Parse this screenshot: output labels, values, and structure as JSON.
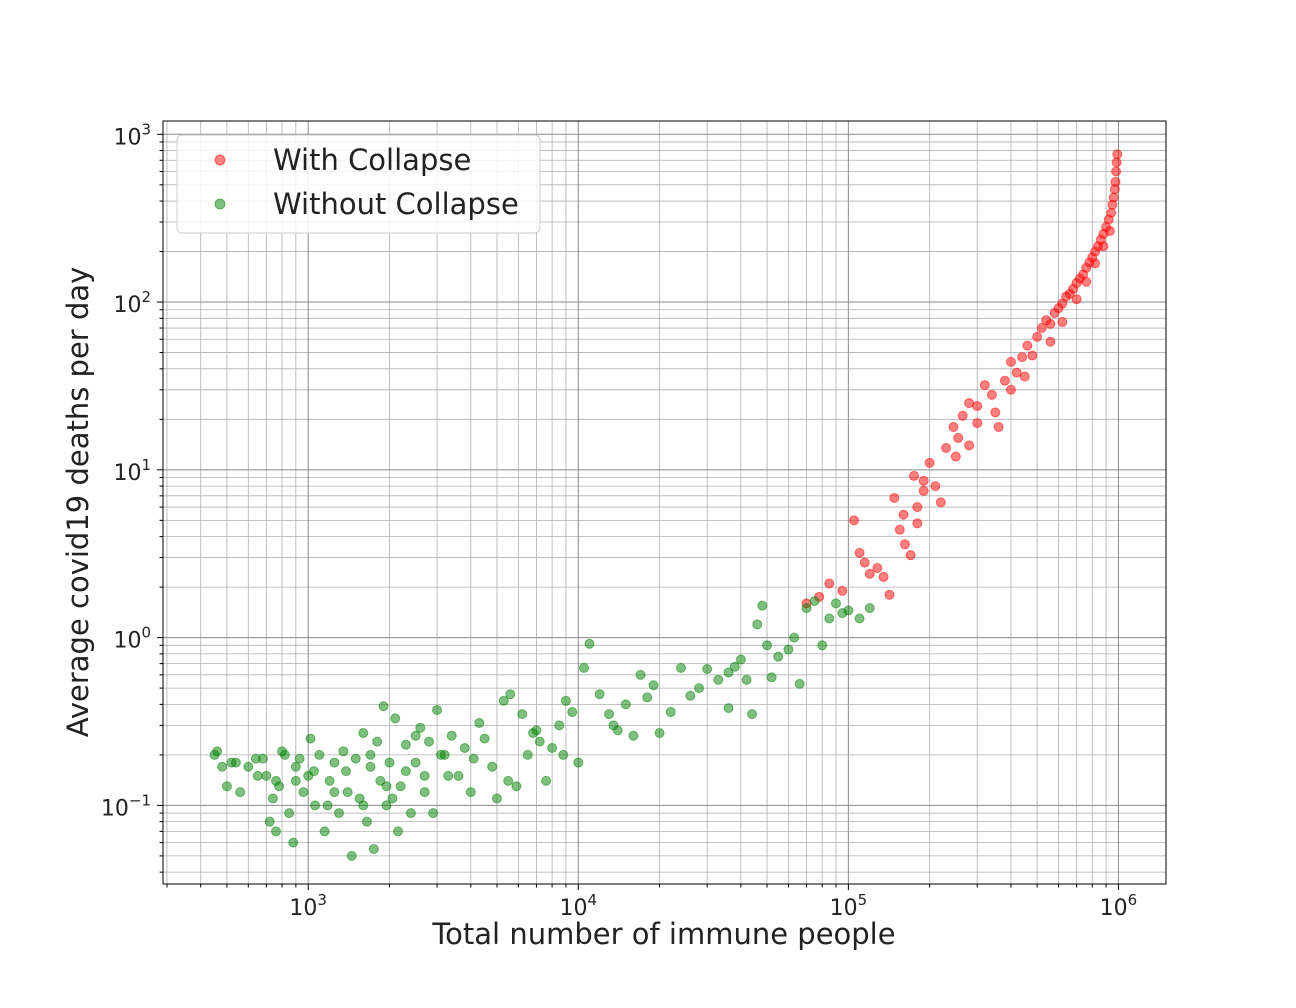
{
  "chart_data": {
    "type": "scatter",
    "title": "",
    "xlabel": "Total number of immune people",
    "ylabel": "Average covid19 deaths per day",
    "xscale": "log",
    "yscale": "log",
    "xlim": [
      290,
      1500000
    ],
    "ylim": [
      0.034,
      1200
    ],
    "grid": "major-and-minor",
    "legend_position": "top-left",
    "x_tick_labels": [
      {
        "base": "10",
        "exp": "3",
        "value": 1000
      },
      {
        "base": "10",
        "exp": "4",
        "value": 10000
      },
      {
        "base": "10",
        "exp": "5",
        "value": 100000
      },
      {
        "base": "10",
        "exp": "6",
        "value": 1000000
      }
    ],
    "y_tick_labels": [
      {
        "base": "10",
        "exp": "−1",
        "value": 0.1
      },
      {
        "base": "10",
        "exp": "0",
        "value": 1
      },
      {
        "base": "10",
        "exp": "1",
        "value": 10
      },
      {
        "base": "10",
        "exp": "2",
        "value": 100
      },
      {
        "base": "10",
        "exp": "3",
        "value": 1000
      }
    ],
    "series": [
      {
        "name": "With Collapse",
        "color": "#ff0000",
        "points": [
          [
            70000,
            1.6
          ],
          [
            78000,
            1.75
          ],
          [
            85000,
            2.1
          ],
          [
            95000,
            1.9
          ],
          [
            105000,
            5.0
          ],
          [
            110000,
            3.2
          ],
          [
            115000,
            2.8
          ],
          [
            120000,
            2.4
          ],
          [
            128000,
            2.6
          ],
          [
            135000,
            2.3
          ],
          [
            142000,
            1.8
          ],
          [
            148000,
            6.8
          ],
          [
            155000,
            4.4
          ],
          [
            162000,
            3.6
          ],
          [
            170000,
            3.1
          ],
          [
            175000,
            9.2
          ],
          [
            180000,
            6.0
          ],
          [
            190000,
            7.5
          ],
          [
            200000,
            11.0
          ],
          [
            210000,
            8.0
          ],
          [
            220000,
            6.4
          ],
          [
            230000,
            13.5
          ],
          [
            245000,
            18.0
          ],
          [
            255000,
            15.5
          ],
          [
            265000,
            21.0
          ],
          [
            280000,
            25.0
          ],
          [
            300000,
            24.0
          ],
          [
            320000,
            32.0
          ],
          [
            340000,
            28.0
          ],
          [
            360000,
            18.0
          ],
          [
            380000,
            34.0
          ],
          [
            400000,
            44.0
          ],
          [
            420000,
            38.0
          ],
          [
            440000,
            47.0
          ],
          [
            460000,
            55.0
          ],
          [
            480000,
            48.0
          ],
          [
            500000,
            62.0
          ],
          [
            520000,
            70.0
          ],
          [
            540000,
            78.0
          ],
          [
            560000,
            74.0
          ],
          [
            580000,
            86.0
          ],
          [
            600000,
            92.0
          ],
          [
            620000,
            98.0
          ],
          [
            640000,
            108.0
          ],
          [
            660000,
            112.0
          ],
          [
            680000,
            120.0
          ],
          [
            700000,
            130.0
          ],
          [
            720000,
            138.0
          ],
          [
            740000,
            146.0
          ],
          [
            760000,
            160.0
          ],
          [
            780000,
            172.0
          ],
          [
            800000,
            185.0
          ],
          [
            820000,
            200.0
          ],
          [
            840000,
            215.0
          ],
          [
            860000,
            235.0
          ],
          [
            880000,
            255.0
          ],
          [
            900000,
            280.0
          ],
          [
            920000,
            310.0
          ],
          [
            940000,
            340.0
          ],
          [
            950000,
            380.0
          ],
          [
            960000,
            420.0
          ],
          [
            970000,
            470.0
          ],
          [
            975000,
            520.0
          ],
          [
            980000,
            600.0
          ],
          [
            985000,
            680.0
          ],
          [
            990000,
            760.0
          ],
          [
            560000,
            58.0
          ],
          [
            620000,
            76.0
          ],
          [
            700000,
            104.0
          ],
          [
            760000,
            132.0
          ],
          [
            820000,
            170.0
          ],
          [
            880000,
            215.0
          ],
          [
            930000,
            265.0
          ],
          [
            450000,
            36.0
          ],
          [
            350000,
            22.0
          ],
          [
            280000,
            14.0
          ],
          [
            400000,
            30.0
          ],
          [
            300000,
            19.0
          ],
          [
            250000,
            12.0
          ],
          [
            180000,
            4.8
          ],
          [
            160000,
            5.4
          ],
          [
            190000,
            8.6
          ]
        ]
      },
      {
        "name": "Without Collapse",
        "color": "#008000",
        "points": [
          [
            450,
            0.2
          ],
          [
            460,
            0.21
          ],
          [
            480,
            0.17
          ],
          [
            500,
            0.13
          ],
          [
            520,
            0.18
          ],
          [
            560,
            0.12
          ],
          [
            600,
            0.17
          ],
          [
            640,
            0.19
          ],
          [
            680,
            0.19
          ],
          [
            700,
            0.15
          ],
          [
            720,
            0.08
          ],
          [
            740,
            0.11
          ],
          [
            760,
            0.07
          ],
          [
            780,
            0.13
          ],
          [
            800,
            0.21
          ],
          [
            820,
            0.2
          ],
          [
            850,
            0.09
          ],
          [
            880,
            0.06
          ],
          [
            900,
            0.14
          ],
          [
            930,
            0.19
          ],
          [
            960,
            0.12
          ],
          [
            1000,
            0.15
          ],
          [
            1020,
            0.25
          ],
          [
            1060,
            0.1
          ],
          [
            1100,
            0.2
          ],
          [
            1150,
            0.07
          ],
          [
            1200,
            0.14
          ],
          [
            1250,
            0.18
          ],
          [
            1300,
            0.09
          ],
          [
            1350,
            0.21
          ],
          [
            1400,
            0.12
          ],
          [
            1450,
            0.05
          ],
          [
            1500,
            0.19
          ],
          [
            1550,
            0.11
          ],
          [
            1600,
            0.27
          ],
          [
            1650,
            0.08
          ],
          [
            1700,
            0.17
          ],
          [
            1750,
            0.055
          ],
          [
            1800,
            0.24
          ],
          [
            1850,
            0.14
          ],
          [
            1900,
            0.39
          ],
          [
            1950,
            0.1
          ],
          [
            2000,
            0.18
          ],
          [
            2100,
            0.33
          ],
          [
            2150,
            0.07
          ],
          [
            2200,
            0.13
          ],
          [
            2300,
            0.23
          ],
          [
            2400,
            0.09
          ],
          [
            2500,
            0.18
          ],
          [
            2600,
            0.29
          ],
          [
            2700,
            0.15
          ],
          [
            2800,
            0.24
          ],
          [
            2900,
            0.09
          ],
          [
            3000,
            0.37
          ],
          [
            3200,
            0.2
          ],
          [
            3400,
            0.26
          ],
          [
            3600,
            0.15
          ],
          [
            3800,
            0.22
          ],
          [
            4000,
            0.12
          ],
          [
            4300,
            0.31
          ],
          [
            4500,
            0.25
          ],
          [
            4800,
            0.17
          ],
          [
            5000,
            0.11
          ],
          [
            5300,
            0.42
          ],
          [
            5600,
            0.46
          ],
          [
            5900,
            0.13
          ],
          [
            6200,
            0.35
          ],
          [
            6500,
            0.2
          ],
          [
            6800,
            0.27
          ],
          [
            7200,
            0.24
          ],
          [
            7600,
            0.14
          ],
          [
            8000,
            0.22
          ],
          [
            8500,
            0.3
          ],
          [
            9000,
            0.42
          ],
          [
            9500,
            0.36
          ],
          [
            10000,
            0.18
          ],
          [
            10500,
            0.66
          ],
          [
            11000,
            0.92
          ],
          [
            12000,
            0.46
          ],
          [
            13000,
            0.35
          ],
          [
            14000,
            0.28
          ],
          [
            15000,
            0.4
          ],
          [
            16000,
            0.26
          ],
          [
            17000,
            0.6
          ],
          [
            18000,
            0.44
          ],
          [
            20000,
            0.27
          ],
          [
            22000,
            0.36
          ],
          [
            24000,
            0.66
          ],
          [
            26000,
            0.45
          ],
          [
            30000,
            0.65
          ],
          [
            33000,
            0.56
          ],
          [
            36000,
            0.38
          ],
          [
            38000,
            0.67
          ],
          [
            40000,
            0.74
          ],
          [
            42000,
            0.56
          ],
          [
            44000,
            0.35
          ],
          [
            46000,
            1.2
          ],
          [
            48000,
            1.55
          ],
          [
            50000,
            0.9
          ],
          [
            52000,
            0.58
          ],
          [
            55000,
            0.77
          ],
          [
            60000,
            0.85
          ],
          [
            63000,
            1.0
          ],
          [
            66000,
            0.53
          ],
          [
            70000,
            1.5
          ],
          [
            75000,
            1.65
          ],
          [
            80000,
            0.9
          ],
          [
            85000,
            1.3
          ],
          [
            90000,
            1.6
          ],
          [
            95000,
            1.4
          ],
          [
            100000,
            1.45
          ],
          [
            110000,
            1.3
          ],
          [
            120000,
            1.5
          ],
          [
            36000,
            0.62
          ],
          [
            28000,
            0.5
          ],
          [
            19000,
            0.52
          ],
          [
            13500,
            0.3
          ],
          [
            8800,
            0.2
          ],
          [
            7000,
            0.28
          ],
          [
            5500,
            0.14
          ],
          [
            4100,
            0.19
          ],
          [
            3300,
            0.15
          ],
          [
            2700,
            0.12
          ],
          [
            2300,
            0.16
          ],
          [
            1950,
            0.13
          ],
          [
            1600,
            0.1
          ],
          [
            1250,
            0.12
          ],
          [
            1050,
            0.16
          ],
          [
            900,
            0.17
          ],
          [
            760,
            0.14
          ],
          [
            650,
            0.15
          ],
          [
            540,
            0.18
          ],
          [
            1180,
            0.1
          ],
          [
            1380,
            0.16
          ],
          [
            1700,
            0.2
          ],
          [
            2050,
            0.11
          ],
          [
            2500,
            0.26
          ],
          [
            3100,
            0.2
          ]
        ]
      }
    ]
  }
}
